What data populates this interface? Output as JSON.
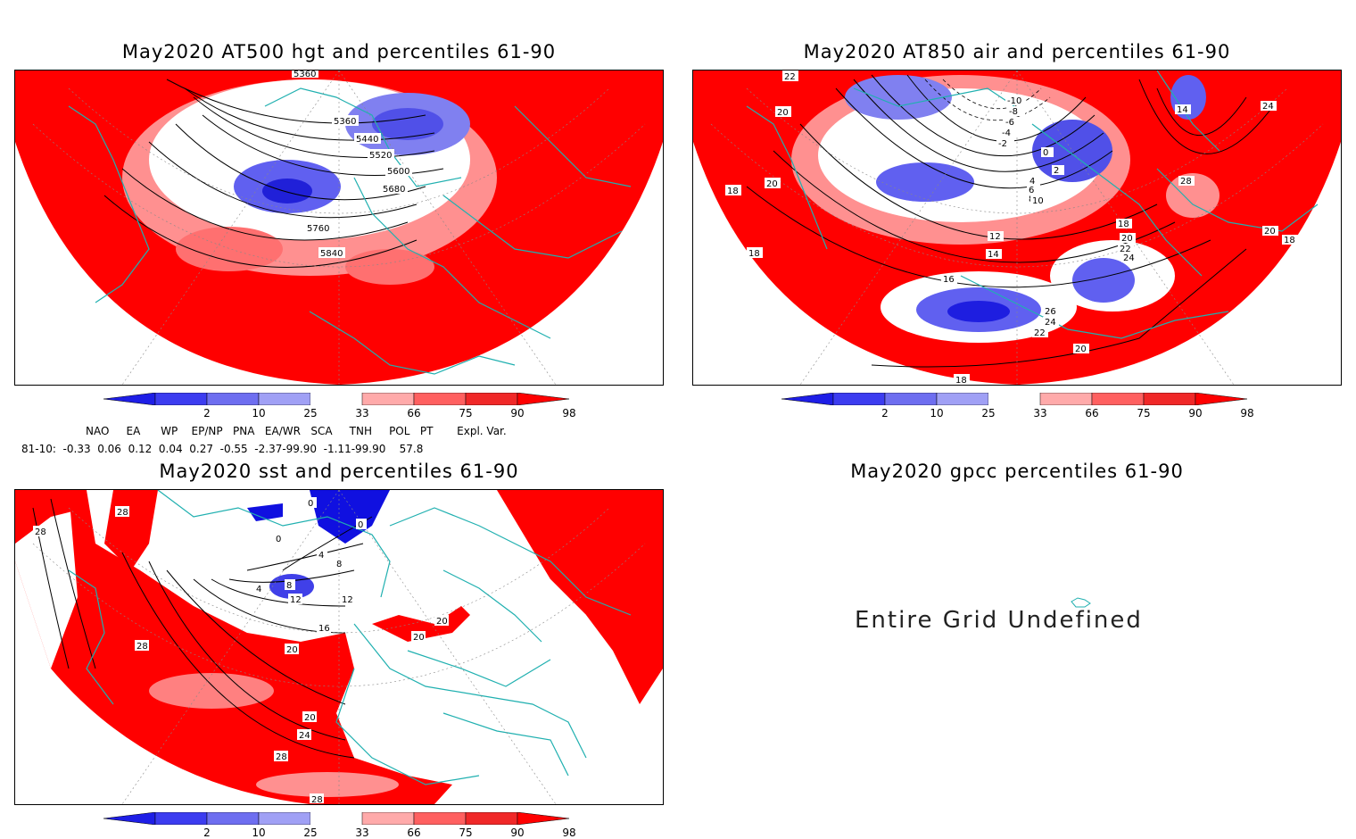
{
  "panels": [
    {
      "title": "May2020 AT500 hgt and percentiles 61-90",
      "contour_labels": [
        "5360",
        "5440",
        "5520",
        "5600",
        "5680",
        "5760",
        "5840",
        "5360"
      ]
    },
    {
      "title": "May2020 AT850 air and percentiles 61-90",
      "contour_labels": [
        "22",
        "20",
        "18",
        "20",
        "18",
        "-10",
        "-8",
        "-6",
        "-4",
        "-2",
        "0",
        "2",
        "4",
        "6",
        "8",
        "10",
        "12",
        "14",
        "16",
        "18",
        "20",
        "22",
        "24",
        "26",
        "24",
        "22",
        "20",
        "18",
        "14",
        "24",
        "28",
        "20",
        "18"
      ]
    },
    {
      "title": "May2020 sst and percentiles 61-90",
      "contour_labels": [
        "28",
        "28",
        "0",
        "0",
        "4",
        "4",
        "8",
        "8",
        "12",
        "12",
        "16",
        "20",
        "28",
        "20",
        "24",
        "28",
        "28",
        "20",
        "20",
        "0"
      ]
    },
    {
      "title": "May2020 gpcc percentiles 61-90",
      "message": "Entire Grid Undefined"
    }
  ],
  "colorbar": {
    "ticks": [
      "2",
      "10",
      "25",
      "33",
      "66",
      "75",
      "90",
      "98"
    ],
    "colors": [
      "#1e1ee6",
      "#3c3cf0",
      "#6e6ef0",
      "#a0a0f5",
      "#ffffff",
      "#ffaaaa",
      "#ff6060",
      "#f02828",
      "#ff0000"
    ]
  },
  "teleconnections": {
    "header": "NAO     EA      WP    EP/NP   PNA   EA/WR   SCA     TNH     POL   PT       Expl. Var.",
    "row": "81-10:  -0.33  0.06  0.12  0.04  0.27  -0.55  -2.37-99.90  -1.11-99.90    57.8"
  },
  "colors": {
    "coast": "#20b0b0",
    "red": "#ff0000",
    "blue": "#2020e0"
  }
}
